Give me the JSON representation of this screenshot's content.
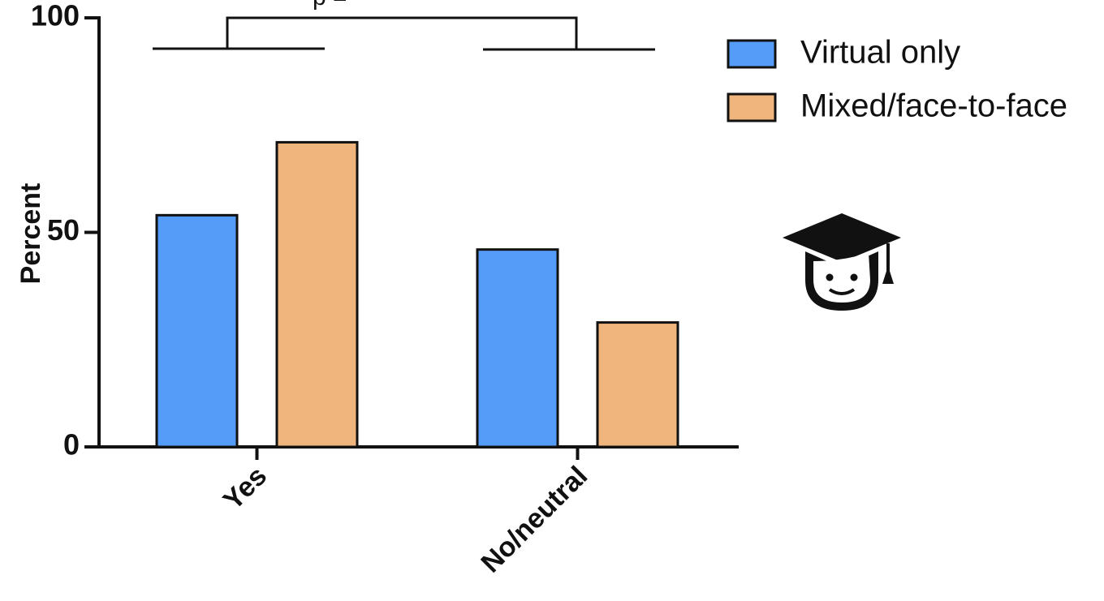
{
  "chart_data": {
    "type": "bar",
    "categories": [
      "Yes",
      "No/neutral"
    ],
    "series": [
      {
        "name": "Virtual only",
        "values": [
          54,
          46
        ],
        "color": "#559cf8"
      },
      {
        "name": "Mixed/face-to-face",
        "values": [
          71,
          29
        ],
        "color": "#f0b57c"
      }
    ],
    "title": "",
    "xlabel": "",
    "ylabel": "Percent",
    "ylim": [
      0,
      100
    ],
    "yticks": [
      0,
      50,
      100
    ],
    "legend_position": "top-right",
    "grid": false,
    "annotation": "p ="
  },
  "icon": "graduate-student-icon"
}
